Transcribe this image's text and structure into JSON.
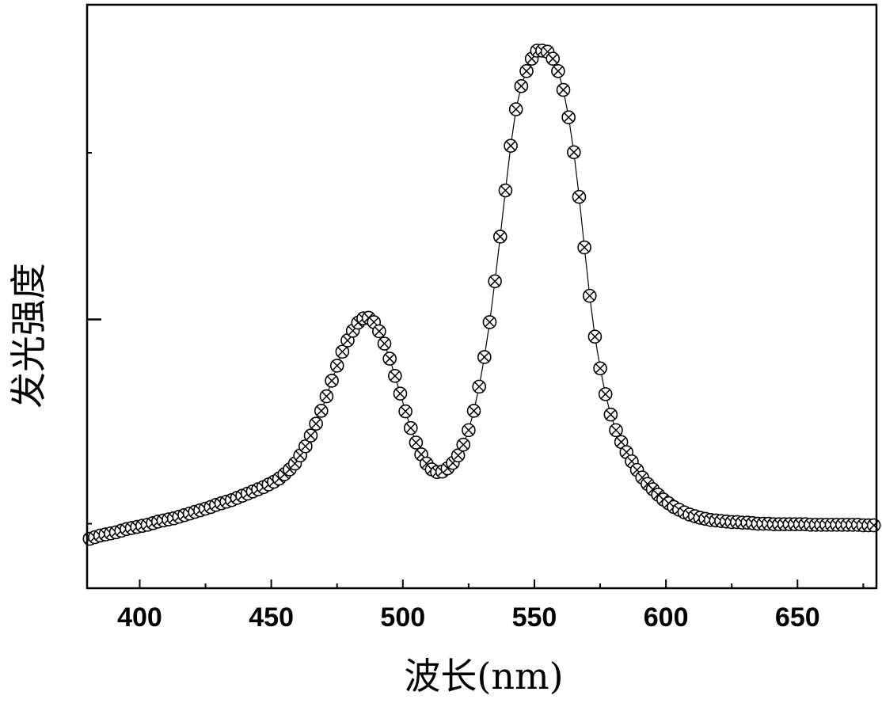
{
  "chart_data": {
    "type": "scatter",
    "title": "",
    "xlabel": "波长(nm)",
    "ylabel": "发光强度",
    "xlim": [
      380,
      680
    ],
    "ylim": [
      0,
      1.0
    ],
    "x_ticks": [
      400,
      450,
      500,
      550,
      600,
      650
    ],
    "x_minor_step": 25,
    "y_minor_ticks": [
      0.12,
      0.81
    ],
    "y_major_ticks": [
      0.5
    ],
    "grid": false,
    "legend": "none",
    "marker": "circle-with-x",
    "connected_line": true,
    "series": [
      {
        "x": [
          381,
          383,
          385,
          387,
          389,
          391,
          393,
          395,
          397,
          399,
          401,
          403,
          405,
          407,
          409,
          411,
          413,
          415,
          417,
          419,
          421,
          423,
          425,
          427,
          429,
          431,
          433,
          435,
          437,
          439,
          441,
          443,
          445,
          447,
          449,
          451,
          453,
          455,
          457,
          459,
          461,
          463,
          465,
          467,
          469,
          471,
          473,
          475,
          477,
          479,
          481,
          483,
          485,
          487,
          489,
          491,
          493,
          495,
          497,
          499,
          501,
          503,
          505,
          507,
          509,
          511,
          513,
          515,
          517,
          519,
          521,
          523,
          525,
          527,
          529,
          531,
          533,
          535,
          537,
          539,
          541,
          543,
          545,
          547,
          549,
          551,
          553,
          555,
          557,
          559,
          561,
          563,
          565,
          567,
          569,
          571,
          573,
          575,
          577,
          579,
          581,
          583,
          585,
          587,
          589,
          591,
          593,
          595,
          597,
          599,
          601,
          603,
          605,
          607,
          609,
          611,
          613,
          615,
          617,
          619,
          621,
          623,
          625,
          627,
          629,
          631,
          633,
          635,
          637,
          639,
          641,
          643,
          645,
          647,
          649,
          651,
          653,
          655,
          657,
          659,
          661,
          663,
          665,
          667,
          669,
          671,
          673,
          675,
          677,
          679
        ],
        "y": [
          0.092,
          0.095,
          0.098,
          0.1,
          0.102,
          0.104,
          0.107,
          0.11,
          0.112,
          0.114,
          0.116,
          0.118,
          0.121,
          0.124,
          0.126,
          0.128,
          0.13,
          0.133,
          0.136,
          0.139,
          0.142,
          0.145,
          0.148,
          0.151,
          0.155,
          0.158,
          0.161,
          0.164,
          0.168,
          0.172,
          0.176,
          0.18,
          0.184,
          0.188,
          0.193,
          0.198,
          0.204,
          0.212,
          0.221,
          0.232,
          0.247,
          0.264,
          0.284,
          0.306,
          0.33,
          0.357,
          0.386,
          0.414,
          0.44,
          0.461,
          0.479,
          0.494,
          0.502,
          0.503,
          0.495,
          0.478,
          0.455,
          0.427,
          0.395,
          0.362,
          0.329,
          0.298,
          0.271,
          0.249,
          0.232,
          0.221,
          0.216,
          0.217,
          0.223,
          0.233,
          0.247,
          0.267,
          0.294,
          0.33,
          0.375,
          0.43,
          0.495,
          0.571,
          0.654,
          0.74,
          0.823,
          0.891,
          0.934,
          0.962,
          0.985,
          1.0,
          1.0,
          0.998,
          0.985,
          0.962,
          0.927,
          0.876,
          0.811,
          0.728,
          0.634,
          0.544,
          0.468,
          0.409,
          0.361,
          0.323,
          0.294,
          0.272,
          0.253,
          0.236,
          0.22,
          0.206,
          0.194,
          0.184,
          0.174,
          0.165,
          0.158,
          0.151,
          0.146,
          0.141,
          0.137,
          0.134,
          0.131,
          0.129,
          0.127,
          0.126,
          0.125,
          0.124,
          0.123,
          0.123,
          0.122,
          0.122,
          0.121,
          0.12,
          0.12,
          0.12,
          0.119,
          0.119,
          0.119,
          0.119,
          0.119,
          0.119,
          0.119,
          0.118,
          0.118,
          0.118,
          0.118,
          0.118,
          0.118,
          0.118,
          0.118,
          0.118,
          0.118,
          0.117,
          0.117,
          0.117
        ]
      }
    ]
  }
}
